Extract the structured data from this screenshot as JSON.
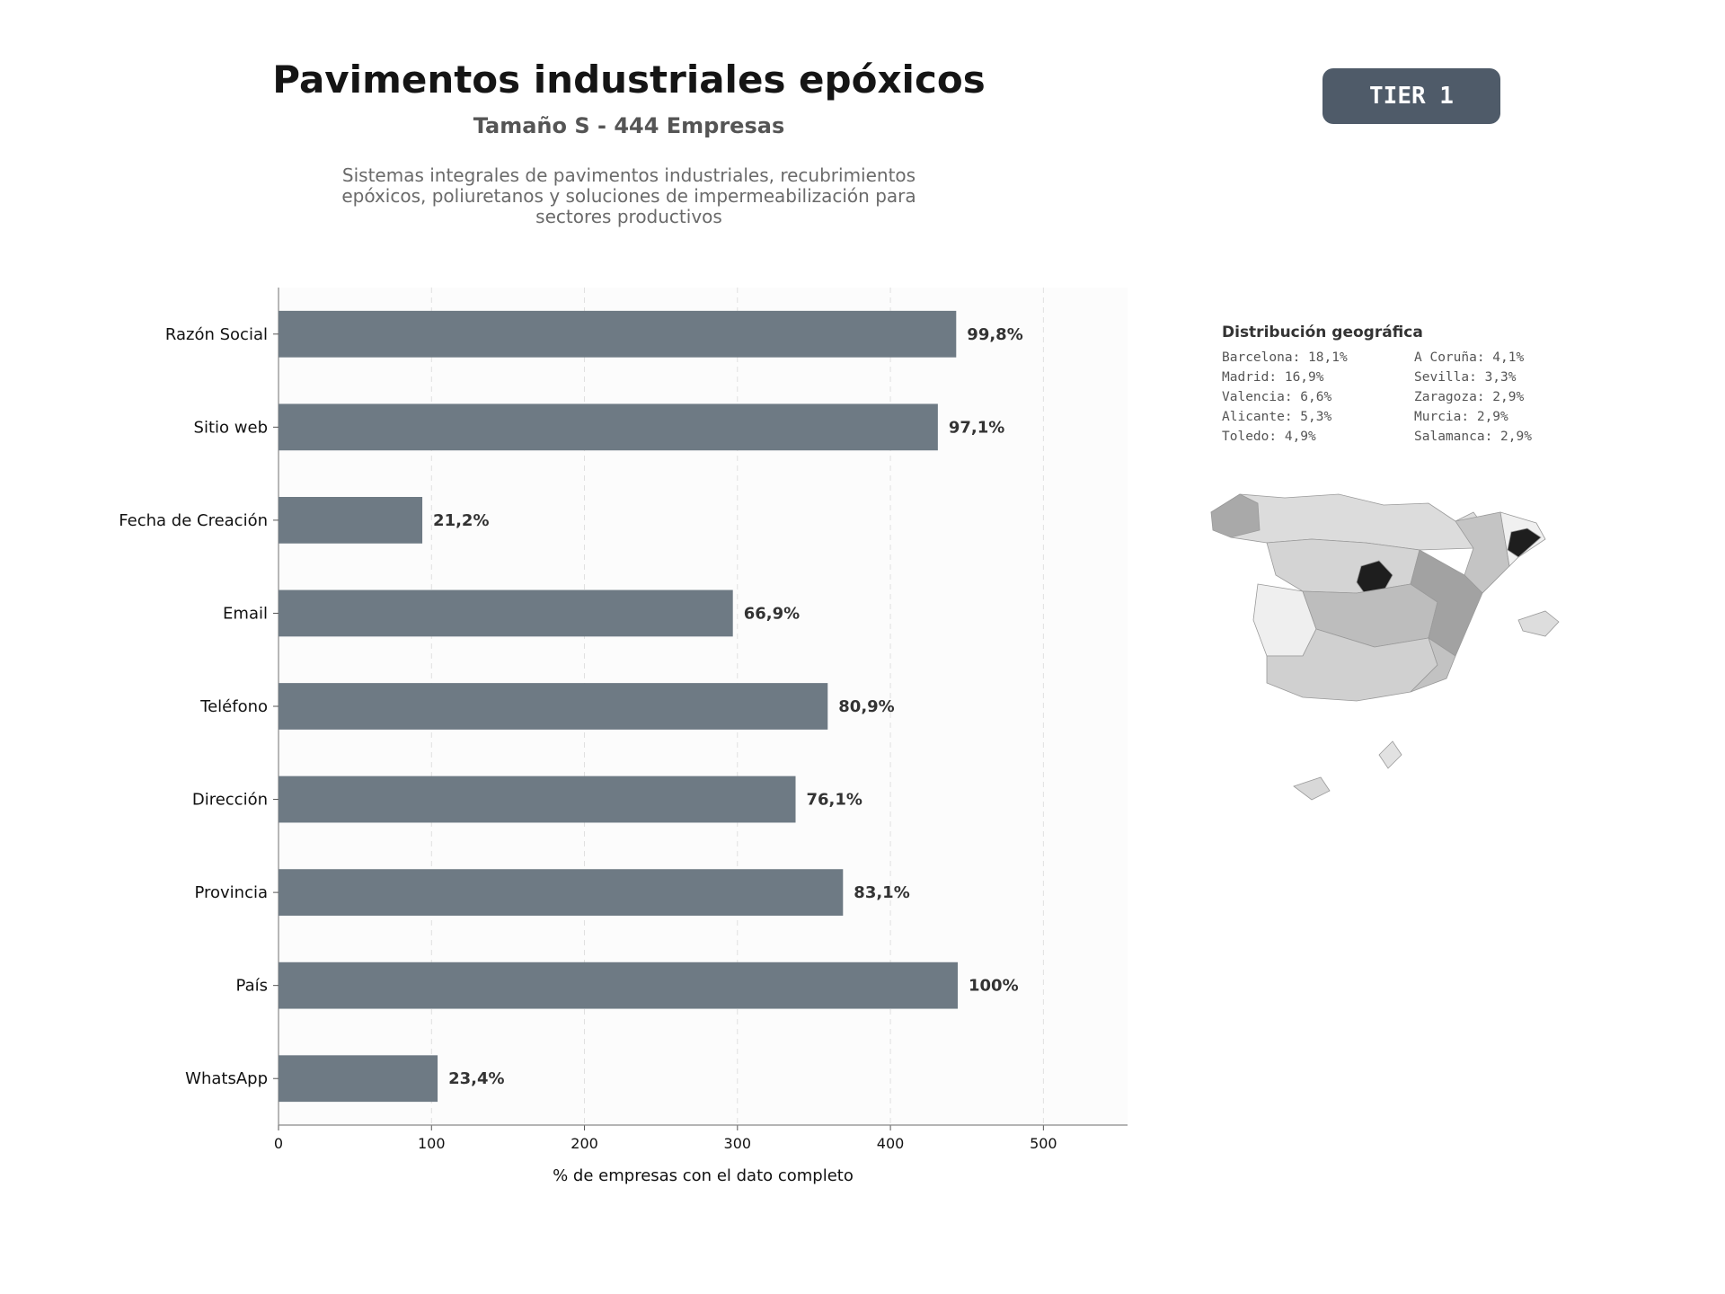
{
  "header": {
    "title": "Pavimentos industriales epóxicos",
    "subtitle": "Tamaño S - 444 Empresas",
    "description": "Sistemas integrales de pavimentos industriales, recubrimientos epóxicos, poliuretanos y soluciones de impermeabilización para sectores productivos",
    "tier": "TIER 1"
  },
  "chart_data": {
    "type": "bar",
    "orientation": "horizontal",
    "categories": [
      "Razón Social",
      "Sitio web",
      "Fecha de Creación",
      "Email",
      "Teléfono",
      "Dirección",
      "Provincia",
      "País",
      "WhatsApp"
    ],
    "values": [
      443,
      431,
      94,
      297,
      359,
      338,
      369,
      444,
      104
    ],
    "labels": [
      "99,8%",
      "97,1%",
      "21,2%",
      "66,9%",
      "80,9%",
      "76,1%",
      "83,1%",
      "100%",
      "23,4%"
    ],
    "xlabel": "% de empresas con el dato completo",
    "ylabel": "",
    "xlim": [
      0,
      555
    ],
    "xticks": [
      0,
      100,
      200,
      300,
      400,
      500
    ],
    "grid": "vertical dashed",
    "bar_color": "#6e7a84"
  },
  "geo": {
    "title": "Distribución geográfica",
    "left_column": [
      "Barcelona: 18,1%",
      "Madrid: 16,9%",
      "Valencia: 6,6%",
      "Alicante: 5,3%",
      "Toledo: 4,9%"
    ],
    "right_column": [
      "A Coruña: 4,1%",
      "Sevilla: 3,3%",
      "Zaragoza: 2,9%",
      "Murcia: 2,9%",
      "Salamanca: 2,9%"
    ]
  }
}
